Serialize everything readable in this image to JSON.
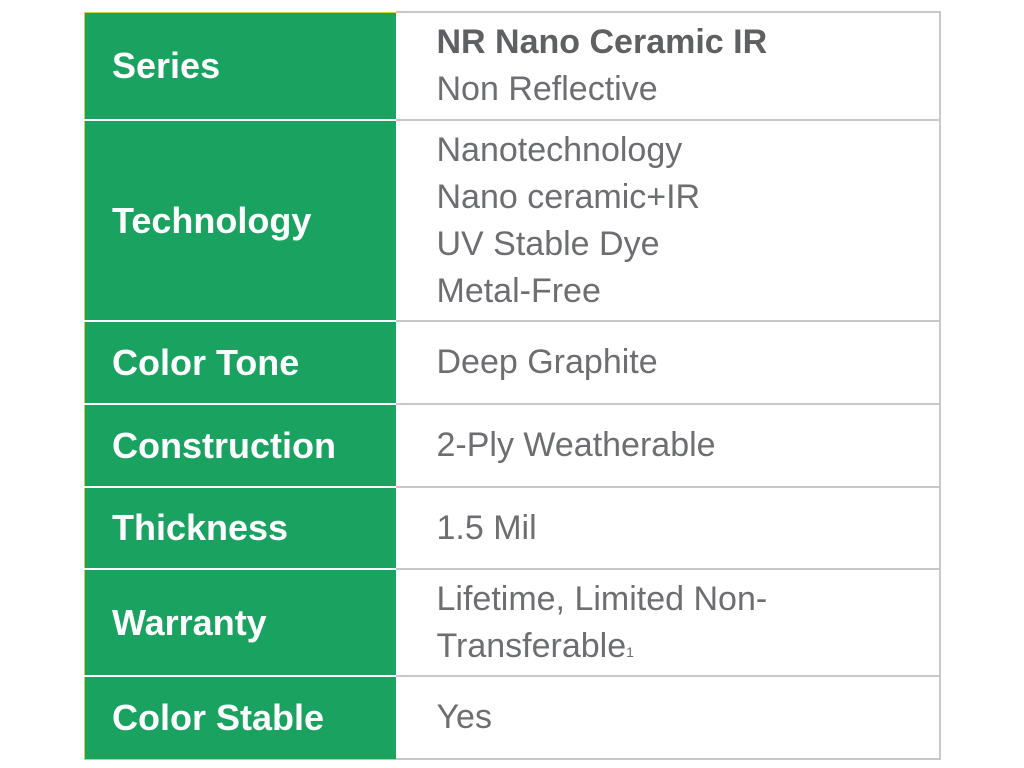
{
  "rows": [
    {
      "label": "Series",
      "title": "NR Nano Ceramic IR",
      "lines": [
        "Non Reflective"
      ]
    },
    {
      "label": "Technology",
      "lines": [
        "Nanotechnology",
        "Nano ceramic+IR",
        "UV Stable Dye",
        "Metal-Free"
      ]
    },
    {
      "label": "Color Tone",
      "lines": [
        "Deep Graphite"
      ]
    },
    {
      "label": "Construction",
      "lines": [
        "2-Ply Weatherable"
      ]
    },
    {
      "label": "Thickness",
      "lines": [
        "1.5 Mil"
      ]
    },
    {
      "label": "Warranty",
      "lines": [
        "Lifetime, Limited Non-",
        "Transferable"
      ],
      "footnote": "1"
    },
    {
      "label": "Color Stable",
      "lines": [
        "Yes"
      ]
    }
  ],
  "colors": {
    "label_bg": "#1aa360",
    "value_text": "#6d6e71"
  }
}
